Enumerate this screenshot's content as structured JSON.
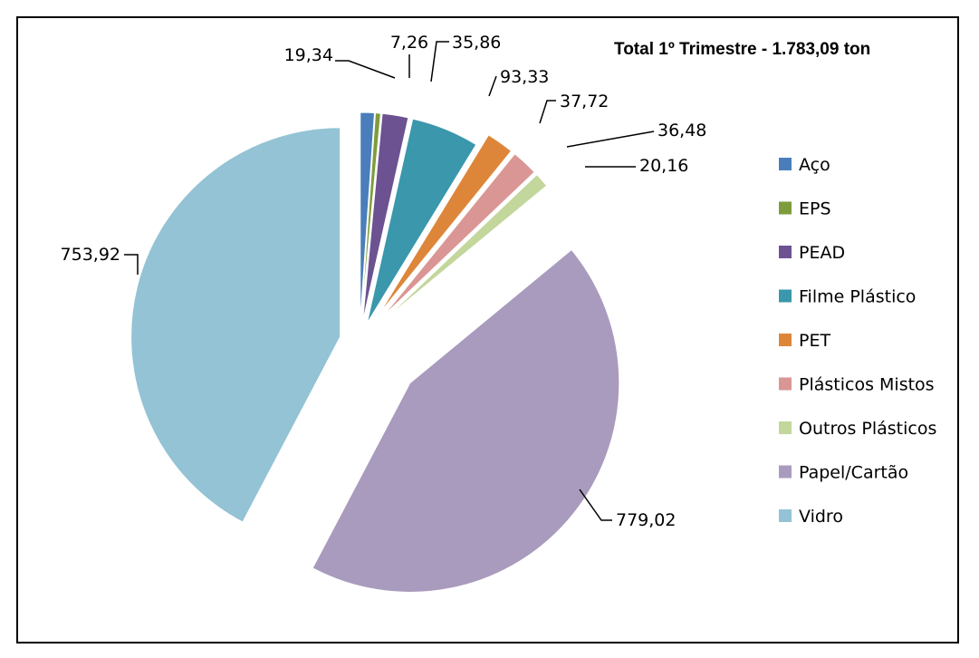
{
  "chart_data": {
    "type": "pie",
    "title": "Total 1º Trimestre - 1.783,09 ton",
    "legend_position": "right",
    "slices": [
      {
        "label": "Aço",
        "value": 19.34,
        "value_text": "19,34",
        "color": "#4a7ebb"
      },
      {
        "label": "EPS",
        "value": 7.26,
        "value_text": "7,26",
        "color": "#7e9c3b"
      },
      {
        "label": "PEAD",
        "value": 35.86,
        "value_text": "35,86",
        "color": "#6c5291"
      },
      {
        "label": "Filme Plástico",
        "value": 93.33,
        "value_text": "93,33",
        "color": "#3a97ac"
      },
      {
        "label": "PET",
        "value": 37.72,
        "value_text": "37,72",
        "color": "#dd863a"
      },
      {
        "label": "Plásticos Mistos",
        "value": 36.48,
        "value_text": "36,48",
        "color": "#d99694"
      },
      {
        "label": "Outros Plásticos",
        "value": 20.16,
        "value_text": "20,16",
        "color": "#c3d69b"
      },
      {
        "label": "Papel/Cartão",
        "value": 779.02,
        "value_text": "779,02",
        "color": "#a99bbd"
      },
      {
        "label": "Vidro",
        "value": 753.92,
        "value_text": "753,92",
        "color": "#93c3d4"
      }
    ]
  }
}
